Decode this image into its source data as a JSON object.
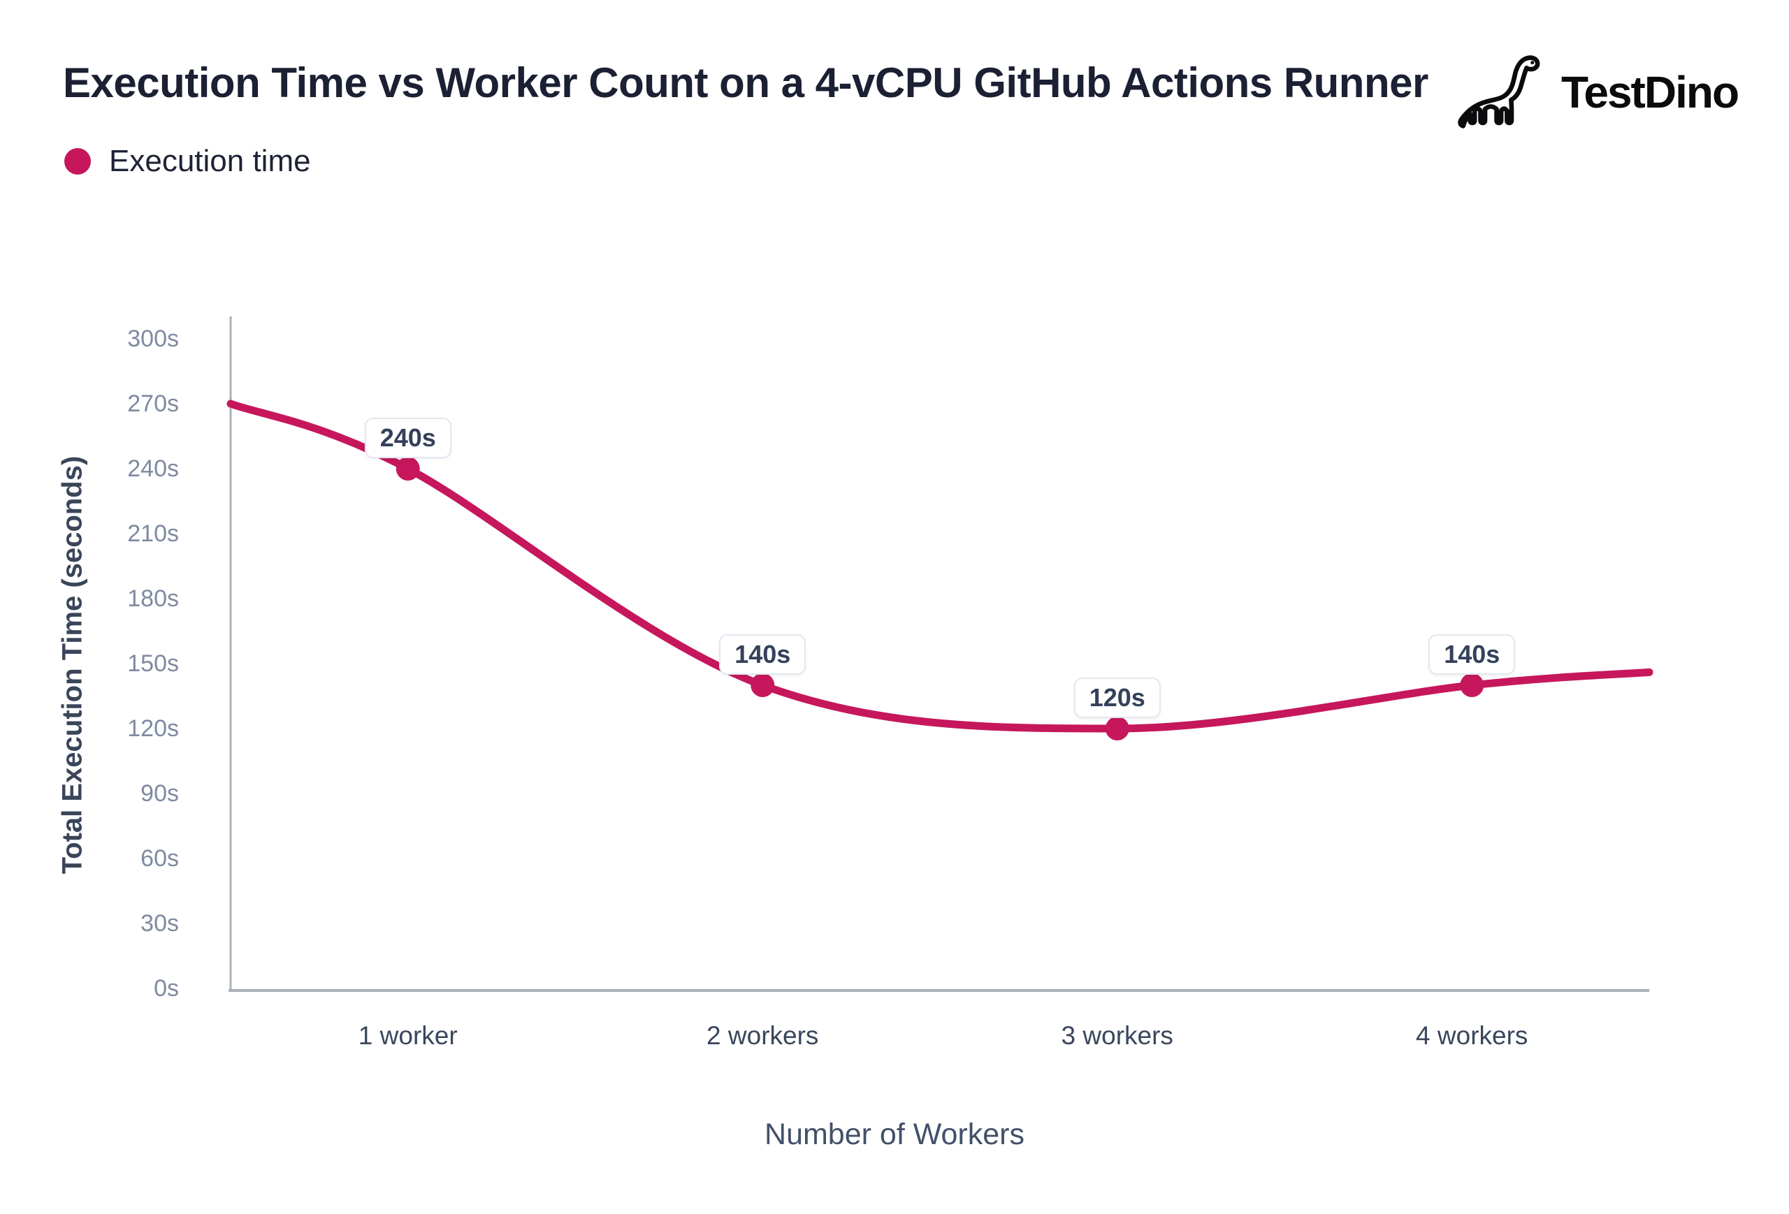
{
  "header": {
    "title": "Execution Time vs Worker Count on a 4-vCPU GitHub Actions Runner",
    "brand": "TestDino"
  },
  "chart_data": {
    "type": "line",
    "title": "Execution Time vs Worker Count on a 4-vCPU GitHub Actions Runner",
    "categories": [
      "1 worker",
      "2 workers",
      "3 workers",
      "4 workers"
    ],
    "series": [
      {
        "name": "Execution time",
        "values": [
          240,
          140,
          120,
          140
        ]
      }
    ],
    "point_labels": [
      "240s",
      "140s",
      "120s",
      "140s"
    ],
    "curve_edge_values": {
      "left": 270,
      "right": 146
    },
    "xlabel": "Number of Workers",
    "ylabel": "Total Execution Time (seconds)",
    "ylim": [
      0,
      300
    ],
    "ytick_step": 30,
    "ytick_suffix": "s",
    "grid": false,
    "smooth": true,
    "legend_position": "top-left",
    "colors": {
      "line": "#C6175C",
      "point": "#C6175C",
      "axis_line": "#ABB0BC",
      "ytick_text": "#7E8AA0",
      "xtick_text": "#3A465C",
      "title_text": "#1B2033",
      "badge_border": "#E2E7EF",
      "badge_text": "#35415A"
    }
  }
}
